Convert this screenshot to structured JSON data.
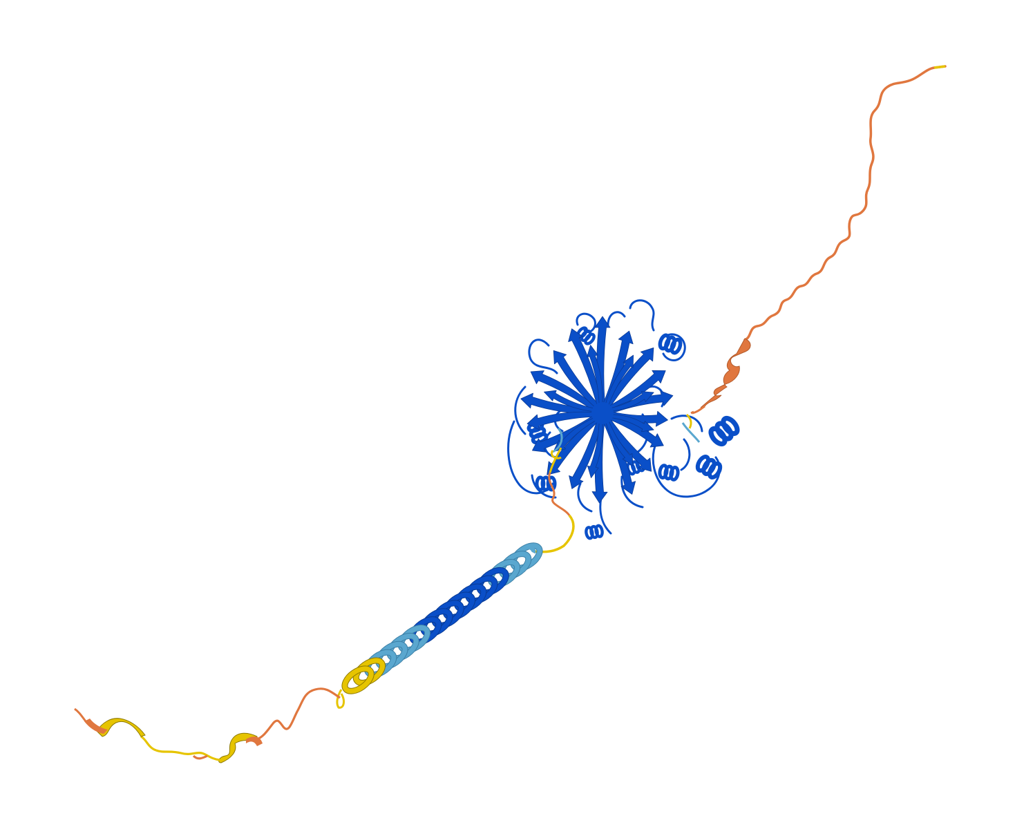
{
  "figure": {
    "background": "#ffffff",
    "confidence_colors": {
      "very_high": "#0053d6",
      "confident": "#65cbf3",
      "low": "#ffdb13",
      "very_low": "#ff7d45"
    },
    "render_colors": {
      "very_high": "#0a4fc8",
      "confident": "#5aa7cf",
      "low": "#e6c400",
      "very_low": "#e0773f"
    }
  }
}
